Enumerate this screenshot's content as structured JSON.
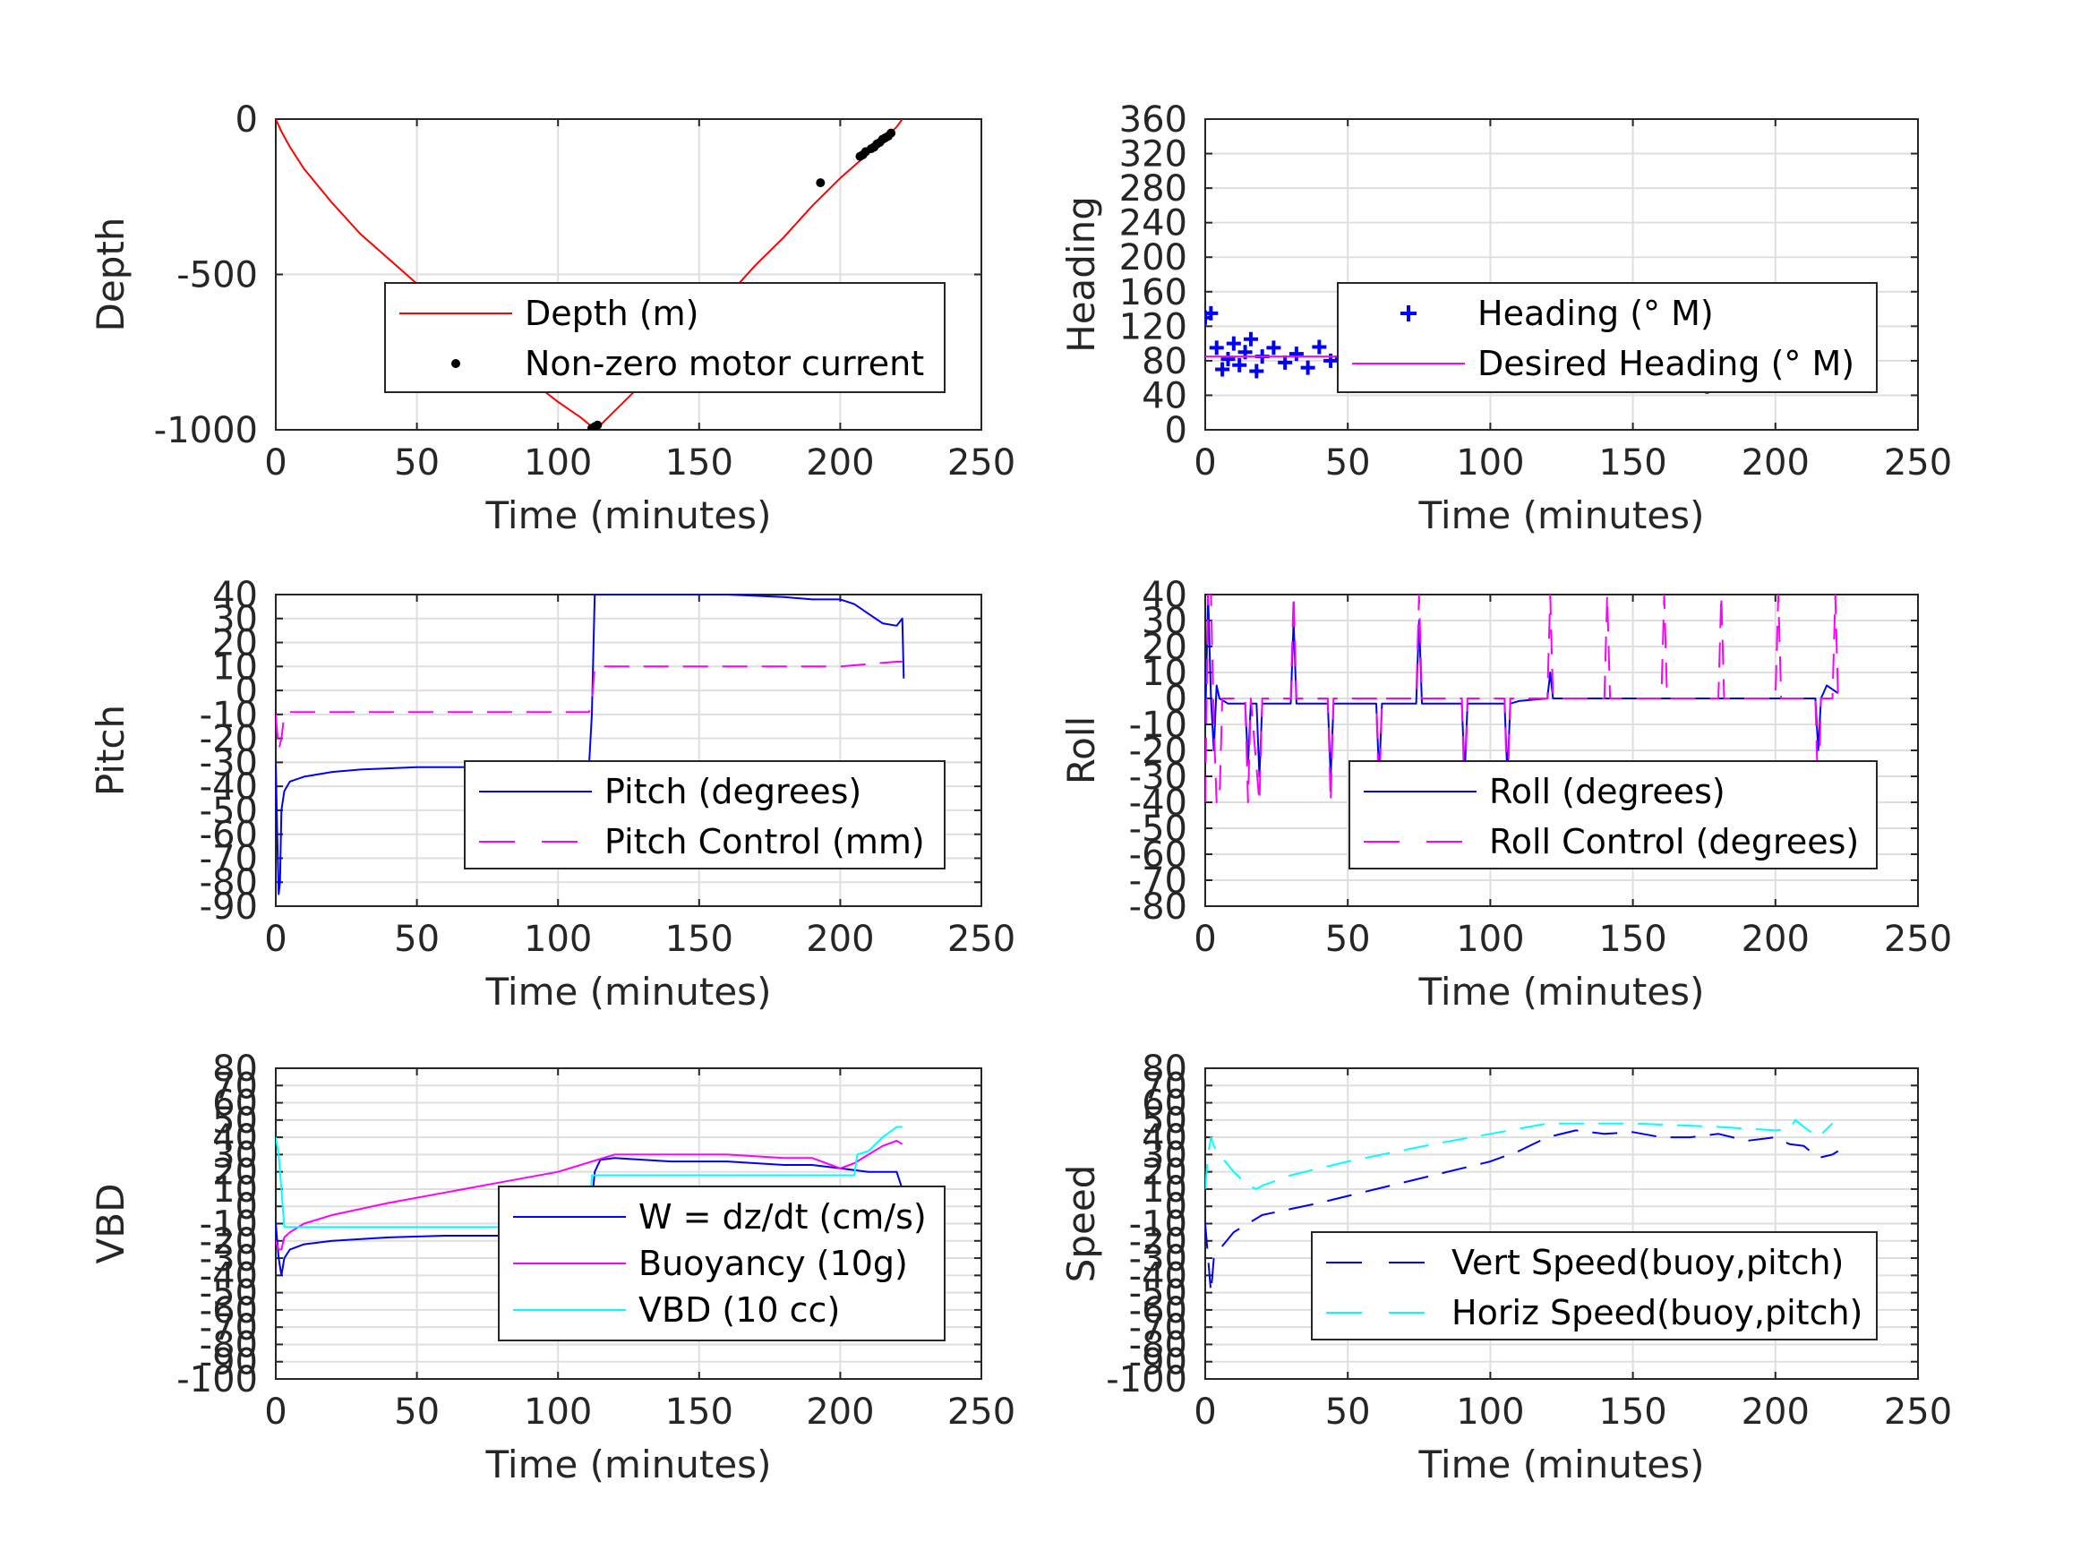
{
  "chart_data": [
    {
      "id": "depth",
      "type": "line",
      "xlabel": "Time (minutes)",
      "ylabel": "Depth",
      "xlim": [
        0,
        250
      ],
      "ylim": [
        -1000,
        0
      ],
      "xticks": [
        0,
        50,
        100,
        150,
        200,
        250
      ],
      "yticks": [
        0,
        -500,
        -1000
      ],
      "ytick_labels": [
        "0",
        "-500",
        "-1000"
      ],
      "grid": true,
      "legend_position": "center-right",
      "series": [
        {
          "name": "Depth (m)",
          "style": "line",
          "color": "#ff0000",
          "x": [
            0,
            2,
            5,
            10,
            20,
            30,
            40,
            50,
            60,
            70,
            80,
            90,
            100,
            108,
            112,
            115,
            120,
            130,
            140,
            150,
            160,
            170,
            180,
            190,
            200,
            210,
            215,
            220,
            222
          ],
          "y": [
            0,
            -40,
            -90,
            -160,
            -270,
            -370,
            -450,
            -530,
            -610,
            -690,
            -760,
            -840,
            -910,
            -960,
            -990,
            -985,
            -940,
            -850,
            -760,
            -660,
            -570,
            -470,
            -380,
            -280,
            -190,
            -110,
            -70,
            -25,
            0
          ]
        },
        {
          "name": "Non-zero motor current",
          "style": "dots",
          "color": "#000000",
          "x": [
            112,
            113,
            114,
            193,
            207,
            208,
            209,
            211,
            212,
            213,
            214,
            215,
            216,
            217,
            218
          ],
          "y": [
            -995,
            -990,
            -985,
            -205,
            -120,
            -115,
            -105,
            -95,
            -90,
            -80,
            -75,
            -65,
            -60,
            -55,
            -45
          ]
        }
      ]
    },
    {
      "id": "heading",
      "type": "scatter",
      "xlabel": "Time (minutes)",
      "ylabel": "Heading",
      "xlim": [
        0,
        250
      ],
      "ylim": [
        0,
        360
      ],
      "xticks": [
        0,
        50,
        100,
        150,
        200,
        250
      ],
      "yticks": [
        0,
        40,
        80,
        120,
        160,
        200,
        240,
        280,
        320,
        360
      ],
      "ytick_labels": [
        "0",
        "40",
        "80",
        "120",
        "160",
        "200",
        "240",
        "280",
        "320",
        "360"
      ],
      "grid": true,
      "legend_position": "center-right",
      "series": [
        {
          "name": "Heading (° M)",
          "style": "plus",
          "color": "#0000ff",
          "x": [
            0,
            2,
            4,
            6,
            8,
            10,
            12,
            14,
            16,
            18,
            20,
            24,
            28,
            32,
            36,
            40,
            44,
            48,
            52,
            56,
            60,
            64,
            68,
            72,
            76,
            80,
            84,
            88,
            92,
            96,
            100,
            104,
            108,
            112,
            116,
            120,
            124,
            128,
            132,
            136,
            140,
            144,
            148,
            152,
            156,
            160,
            164,
            168,
            172,
            176,
            180,
            184,
            188,
            192,
            196,
            200,
            204,
            208,
            212,
            216,
            220
          ],
          "y": [
            130,
            135,
            95,
            70,
            82,
            100,
            75,
            90,
            105,
            68,
            85,
            95,
            78,
            88,
            72,
            96,
            80,
            84,
            92,
            74,
            86,
            90,
            78,
            98,
            70,
            88,
            82,
            95,
            76,
            90,
            110,
            72,
            85,
            88,
            70,
            92,
            80,
            86,
            74,
            95,
            78,
            90,
            84,
            72,
            96,
            80,
            88,
            70,
            92,
            50,
            86,
            78,
            94,
            72,
            88,
            82,
            70,
            95,
            115,
            100,
            85
          ]
        },
        {
          "name": "Desired Heading (° M)",
          "style": "line",
          "color": "#ff00ff",
          "x": [
            0,
            222
          ],
          "y": [
            85,
            85
          ]
        }
      ]
    },
    {
      "id": "pitch",
      "type": "line",
      "xlabel": "Time (minutes)",
      "ylabel": "Pitch",
      "xlim": [
        0,
        250
      ],
      "ylim": [
        -90,
        40
      ],
      "xticks": [
        0,
        50,
        100,
        150,
        200,
        250
      ],
      "yticks": [
        40,
        30,
        20,
        10,
        0,
        -10,
        -20,
        -30,
        -40,
        -50,
        -60,
        -70,
        -80,
        -90
      ],
      "ytick_labels": [
        "40",
        "30",
        "20",
        "10",
        "0",
        "-10",
        "-20",
        "-30",
        "-40",
        "-50",
        "-60",
        "-70",
        "-80",
        "-90"
      ],
      "grid": true,
      "legend_position": "lower-right",
      "series": [
        {
          "name": "Pitch (degrees)",
          "style": "line",
          "color": "#0000ff",
          "x": [
            0,
            0.5,
            1,
            1.5,
            2,
            3,
            5,
            10,
            20,
            30,
            50,
            70,
            90,
            100,
            110,
            111,
            112,
            113,
            115,
            120,
            140,
            160,
            180,
            190,
            200,
            205,
            210,
            215,
            220,
            222,
            222.5
          ],
          "y": [
            -30,
            -60,
            -85,
            -80,
            -50,
            -42,
            -38,
            -36,
            -34,
            -33,
            -32,
            -32,
            -32,
            -32,
            -31,
            -31,
            -10,
            40,
            40,
            40,
            40,
            40,
            39,
            38,
            38,
            36,
            32,
            28,
            27,
            30,
            5
          ]
        },
        {
          "name": "Pitch Control (mm)",
          "style": "dashed",
          "color": "#ff00ff",
          "x": [
            0,
            1,
            2,
            3,
            5,
            20,
            50,
            80,
            110,
            111,
            112,
            113,
            120,
            150,
            180,
            200,
            210,
            220,
            222
          ],
          "y": [
            -10,
            -25,
            -20,
            -10,
            -9,
            -9,
            -9,
            -9,
            -9,
            -9,
            -5,
            10,
            10,
            10,
            10,
            10,
            11,
            12,
            12
          ]
        }
      ]
    },
    {
      "id": "roll",
      "type": "line",
      "xlabel": "Time (minutes)",
      "ylabel": "Roll",
      "xlim": [
        0,
        250
      ],
      "ylim": [
        -80,
        40
      ],
      "xticks": [
        0,
        50,
        100,
        150,
        200,
        250
      ],
      "yticks": [
        40,
        30,
        20,
        10,
        0,
        -10,
        -20,
        -30,
        -40,
        -50,
        -60,
        -70,
        -80
      ],
      "ytick_labels": [
        "40",
        "30",
        "20",
        "10",
        "0",
        "-10",
        "-20",
        "-30",
        "-40",
        "-50",
        "-60",
        "-70",
        "-80"
      ],
      "grid": true,
      "legend_position": "lower-right",
      "series": [
        {
          "name": "Roll (degrees)",
          "style": "line",
          "color": "#0000ff",
          "x": [
            0,
            1,
            2,
            3,
            4,
            5,
            8,
            10,
            14,
            15,
            16,
            18,
            19,
            20,
            25,
            30,
            31,
            32,
            40,
            43,
            44,
            45,
            50,
            60,
            61,
            62,
            70,
            74,
            75,
            76,
            80,
            90,
            91,
            92,
            100,
            105,
            106,
            107,
            110,
            120,
            121,
            122,
            130,
            140,
            150,
            160,
            170,
            180,
            190,
            200,
            210,
            214,
            215,
            216,
            218,
            222
          ],
          "y": [
            -10,
            40,
            0,
            -20,
            5,
            0,
            -2,
            -2,
            -2,
            -25,
            -2,
            -2,
            -30,
            -2,
            -2,
            -2,
            30,
            -2,
            -2,
            -2,
            -30,
            -2,
            -2,
            -2,
            -30,
            -2,
            -2,
            -2,
            30,
            -2,
            -2,
            -2,
            -30,
            -2,
            -2,
            -2,
            -30,
            -2,
            -1,
            0,
            10,
            0,
            0,
            0,
            0,
            0,
            0,
            0,
            0,
            0,
            0,
            0,
            -20,
            0,
            5,
            2
          ]
        },
        {
          "name": "Roll Control (degrees)",
          "style": "dashed",
          "color": "#ff00ff",
          "x": [
            0,
            1,
            2,
            3,
            4,
            5,
            6,
            7,
            8,
            9,
            10,
            14,
            15,
            16,
            19,
            20,
            30,
            31,
            32,
            43,
            44,
            45,
            60,
            61,
            62,
            74,
            75,
            76,
            90,
            91,
            92,
            105,
            106,
            107,
            120,
            121,
            122,
            140,
            141,
            142,
            160,
            161,
            162,
            180,
            181,
            182,
            200,
            201,
            202,
            214,
            215,
            216,
            220,
            221,
            222
          ],
          "y": [
            -40,
            40,
            40,
            -10,
            -40,
            -40,
            0,
            0,
            0,
            0,
            0,
            0,
            -40,
            0,
            -40,
            0,
            0,
            40,
            0,
            0,
            -40,
            0,
            0,
            -40,
            0,
            0,
            40,
            0,
            0,
            -40,
            0,
            0,
            -40,
            0,
            0,
            40,
            0,
            0,
            40,
            0,
            0,
            40,
            0,
            0,
            40,
            0,
            0,
            40,
            0,
            0,
            -40,
            0,
            0,
            40,
            0
          ]
        }
      ]
    },
    {
      "id": "vbd",
      "type": "line",
      "xlabel": "Time (minutes)",
      "ylabel": "VBD",
      "xlim": [
        0,
        250
      ],
      "ylim": [
        -100,
        80
      ],
      "xticks": [
        0,
        50,
        100,
        150,
        200,
        250
      ],
      "yticks": [
        80,
        70,
        60,
        50,
        40,
        30,
        20,
        10,
        0,
        -10,
        -20,
        -30,
        -40,
        -50,
        -60,
        -70,
        -80,
        -90,
        -100
      ],
      "ytick_labels": [
        "80",
        "70",
        "60",
        "50",
        "40",
        "30",
        "20",
        "10",
        "0",
        "-10",
        "-20",
        "-30",
        "-40",
        "-50",
        "-60",
        "-70",
        "-80",
        "-90",
        "-100"
      ],
      "grid": true,
      "legend_position": "lower-right",
      "series": [
        {
          "name": "W = dz/dt (cm/s)",
          "style": "line",
          "color": "#0000ff",
          "x": [
            0,
            1,
            2,
            3,
            5,
            10,
            20,
            40,
            60,
            80,
            100,
            110,
            111,
            113,
            115,
            120,
            140,
            160,
            180,
            190,
            200,
            210,
            220,
            222
          ],
          "y": [
            -10,
            -30,
            -40,
            -30,
            -25,
            -22,
            -20,
            -18,
            -17,
            -17,
            -17,
            -17,
            -15,
            20,
            27,
            28,
            26,
            26,
            24,
            24,
            22,
            20,
            20,
            10
          ]
        },
        {
          "name": "Buoyancy (10g)",
          "style": "line",
          "color": "#ff00ff",
          "x": [
            0,
            1,
            2,
            3,
            5,
            10,
            20,
            40,
            60,
            80,
            100,
            120,
            140,
            160,
            180,
            190,
            195,
            200,
            205,
            210,
            215,
            220,
            222
          ],
          "y": [
            -20,
            -25,
            -25,
            -18,
            -15,
            -10,
            -5,
            2,
            8,
            14,
            20,
            30,
            30,
            30,
            28,
            28,
            25,
            22,
            25,
            30,
            35,
            38,
            36
          ]
        },
        {
          "name": "VBD (10 cc)",
          "style": "line",
          "color": "#00ffff",
          "x": [
            0,
            1,
            2,
            3,
            5,
            10,
            20,
            50,
            100,
            110,
            111,
            112,
            120,
            150,
            180,
            200,
            205,
            206,
            210,
            215,
            220,
            222
          ],
          "y": [
            40,
            30,
            10,
            -12,
            -12,
            -12,
            -12,
            -12,
            -12,
            -12,
            -12,
            18,
            18,
            18,
            18,
            18,
            18,
            30,
            32,
            40,
            46,
            46
          ]
        }
      ]
    },
    {
      "id": "speed",
      "type": "line",
      "xlabel": "Time (minutes)",
      "ylabel": "Speed",
      "xlim": [
        0,
        250
      ],
      "ylim": [
        -100,
        80
      ],
      "xticks": [
        0,
        50,
        100,
        150,
        200,
        250
      ],
      "yticks": [
        80,
        70,
        60,
        50,
        40,
        30,
        20,
        10,
        0,
        -10,
        -20,
        -30,
        -40,
        -50,
        -60,
        -70,
        -80,
        -90,
        -100
      ],
      "ytick_labels": [
        "80",
        "70",
        "60",
        "50",
        "40",
        "30",
        "20",
        "10",
        "0",
        "-10",
        "-20",
        "-30",
        "-40",
        "-50",
        "-60",
        "-70",
        "-80",
        "-90",
        "-100"
      ],
      "grid": true,
      "legend_position": "lower-right",
      "series": [
        {
          "name": "Vert Speed(buoy,pitch)",
          "style": "dashed",
          "color": "#0000ff",
          "x": [
            0,
            1,
            2,
            3,
            5,
            10,
            20,
            40,
            60,
            80,
            100,
            110,
            120,
            130,
            140,
            150,
            160,
            170,
            180,
            190,
            200,
            205,
            210,
            215,
            220,
            222
          ],
          "y": [
            -10,
            -30,
            -50,
            -30,
            -25,
            -15,
            -5,
            2,
            10,
            18,
            26,
            32,
            40,
            44,
            42,
            43,
            40,
            40,
            42,
            38,
            40,
            36,
            35,
            28,
            30,
            32
          ]
        },
        {
          "name": "Horiz Speed(buoy,pitch)",
          "style": "dashed",
          "color": "#00ffff",
          "x": [
            0,
            1,
            2,
            3,
            5,
            10,
            15,
            18,
            20,
            30,
            50,
            80,
            100,
            120,
            150,
            180,
            200,
            205,
            207,
            210,
            215,
            220
          ],
          "y": [
            10,
            30,
            40,
            35,
            30,
            20,
            12,
            10,
            12,
            18,
            26,
            36,
            42,
            48,
            48,
            46,
            44,
            45,
            50,
            46,
            40,
            48
          ]
        }
      ]
    }
  ]
}
